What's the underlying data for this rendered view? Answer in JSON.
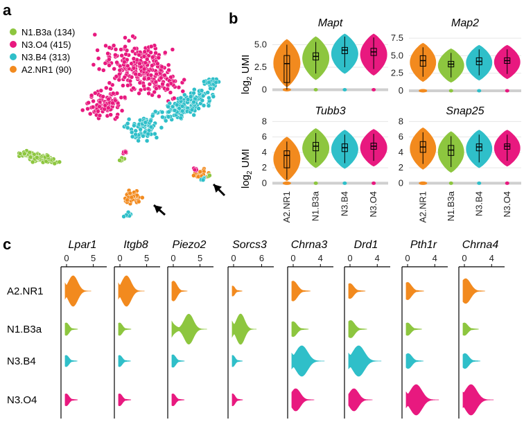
{
  "panels": {
    "a": "a",
    "b": "b",
    "c": "c"
  },
  "colors": {
    "A2.NR1": "#f28a1e",
    "N1.B3a": "#8dc63f",
    "N3.B4": "#2fbfc9",
    "N3.O4": "#e8197f"
  },
  "tsne_legend": [
    {
      "label": "N1.B3a (134)",
      "cluster": "N1.B3a"
    },
    {
      "label": "N3.O4 (415)",
      "cluster": "N3.O4"
    },
    {
      "label": "N3.B4 (313)",
      "cluster": "N3.B4"
    },
    {
      "label": "A2.NR1 (90)",
      "cluster": "A2.NR1"
    }
  ],
  "chart_data": [
    {
      "panel": "a",
      "type": "scatter",
      "legend": [
        "N1.B3a (134)",
        "N3.O4 (415)",
        "N3.B4 (313)",
        "A2.NR1 (90)"
      ],
      "cell_counts": {
        "N1.B3a": 134,
        "N3.O4": 415,
        "N3.B4": 313,
        "A2.NR1": 90
      },
      "legend_position": "top-left",
      "annotations": "two arrows"
    },
    {
      "panel": "b",
      "type": "violin",
      "ylabel": "log2 UMI",
      "categories": [
        "A2.NR1",
        "N1.B3a",
        "N3.B4",
        "N3.O4"
      ],
      "facets": [
        {
          "title": "Mapt",
          "yticks": [
            "0",
            "2.5",
            "5.0"
          ],
          "ylim": [
            -0.5,
            6.5
          ],
          "medians": [
            2.9,
            3.7,
            4.4,
            4.2
          ],
          "q1": [
            0.8,
            3.3,
            4.0,
            3.8
          ],
          "q3": [
            3.8,
            4.1,
            4.7,
            4.6
          ]
        },
        {
          "title": "Map2",
          "yticks": [
            "0",
            "2.5",
            "5.0",
            "7.5"
          ],
          "ylim": [
            -0.5,
            8.5
          ],
          "medians": [
            4.3,
            3.8,
            4.2,
            4.3
          ],
          "q1": [
            3.5,
            3.4,
            3.7,
            3.9
          ],
          "q3": [
            5.0,
            4.2,
            4.7,
            4.7
          ]
        },
        {
          "title": "Tubb3",
          "yticks": [
            "0",
            "2",
            "4",
            "6",
            "8"
          ],
          "ylim": [
            -0.5,
            8.3
          ],
          "medians": [
            3.6,
            4.8,
            4.6,
            4.8
          ],
          "q1": [
            2.0,
            4.2,
            4.1,
            4.4
          ],
          "q3": [
            4.2,
            5.3,
            5.1,
            5.2
          ]
        },
        {
          "title": "Snap25",
          "yticks": [
            "0",
            "2",
            "4",
            "6",
            "8"
          ],
          "ylim": [
            -0.5,
            8.3
          ],
          "medians": [
            4.7,
            4.3,
            4.7,
            4.8
          ],
          "q1": [
            4.0,
            3.6,
            4.2,
            4.4
          ],
          "q3": [
            5.4,
            4.9,
            5.1,
            5.1
          ]
        }
      ]
    },
    {
      "panel": "c",
      "type": "violin",
      "rows": [
        "A2.NR1",
        "N1.B3a",
        "N3.B4",
        "N3.O4"
      ],
      "genes": [
        {
          "title": "Lpar1",
          "ticks": [
            "0",
            "5"
          ],
          "xmax": 7,
          "peak": [
            1.5,
            0.2,
            0.2,
            0.2
          ],
          "width": [
            1.0,
            0.2,
            0.15,
            0.18
          ]
        },
        {
          "title": "Itgb8",
          "ticks": [
            "0",
            "5"
          ],
          "xmax": 7,
          "peak": [
            1.5,
            0.2,
            0.2,
            0.2
          ],
          "width": [
            1.0,
            0.2,
            0.15,
            0.18
          ]
        },
        {
          "title": "Piezo2",
          "ticks": [
            "0",
            "5"
          ],
          "xmax": 7,
          "peak": [
            0.3,
            3.2,
            0.2,
            0.2
          ],
          "width": [
            0.5,
            1.0,
            0.2,
            0.18
          ]
        },
        {
          "title": "Sorcs3",
          "ticks": [
            "0",
            "6"
          ],
          "xmax": 8,
          "peak": [
            0.1,
            1.8,
            0.1,
            0.1
          ],
          "width": [
            0.1,
            1.0,
            0.15,
            0.18
          ]
        },
        {
          "title": "Chrna3",
          "ticks": [
            "0",
            "4"
          ],
          "xmax": 5.5,
          "peak": [
            0.2,
            0.2,
            1.5,
            0.6
          ],
          "width": [
            0.5,
            0.3,
            1.0,
            0.6
          ]
        },
        {
          "title": "Drd1",
          "ticks": [
            "0",
            "4"
          ],
          "xmax": 5.5,
          "peak": [
            0.2,
            0.3,
            1.5,
            0.8
          ],
          "width": [
            0.3,
            0.4,
            1.0,
            0.6
          ]
        },
        {
          "title": "Pth1r",
          "ticks": [
            "0",
            "4"
          ],
          "xmax": 5.5,
          "peak": [
            0.2,
            0.2,
            0.3,
            1.5
          ],
          "width": [
            0.4,
            0.2,
            0.3,
            1.0
          ]
        },
        {
          "title": "Chrna4",
          "ticks": [
            "0",
            "4"
          ],
          "xmax": 5.5,
          "peak": [
            0.4,
            0.2,
            0.3,
            1.2
          ],
          "width": [
            0.7,
            0.2,
            0.3,
            1.0
          ]
        }
      ]
    }
  ]
}
